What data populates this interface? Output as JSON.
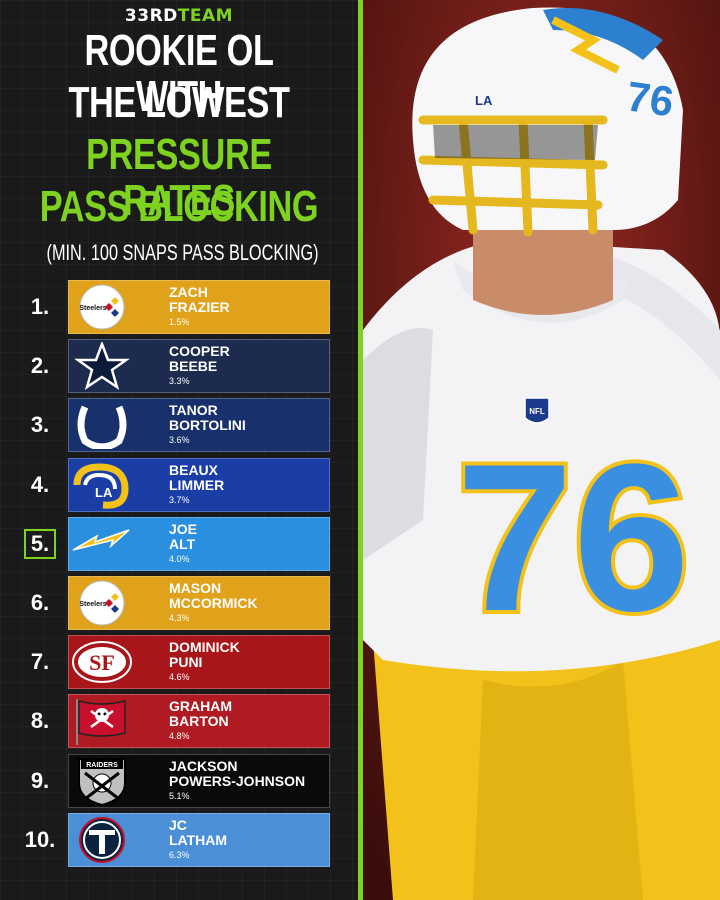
{
  "brand": {
    "prefix": "33RD",
    "suffix": "TEAM"
  },
  "title": {
    "line1": "ROOKIE OL WITH",
    "line2": "THE LOWEST",
    "line3": "PRESSURE RATES",
    "line4": "PASS BLOCKING"
  },
  "subtitle": "(MIN. 100 SNAPS PASS BLOCKING)",
  "colors": {
    "accent": "#7ed321",
    "background": "#1a1a1a"
  },
  "players": [
    {
      "rank": "1.",
      "first": "ZACH",
      "last": "FRAZIER",
      "rate": "1.5%",
      "team_icon": "steelers-logo-icon",
      "logo_text": "Steelers",
      "card_color": "#e0a21a"
    },
    {
      "rank": "2.",
      "first": "COOPER",
      "last": "BEEBE",
      "rate": "3.3%",
      "team_icon": "cowboys-star-icon",
      "card_color": "#1c2b4e"
    },
    {
      "rank": "3.",
      "first": "TANOR",
      "last": "BORTOLINI",
      "rate": "3.6%",
      "team_icon": "colts-horseshoe-icon",
      "card_color": "#18306b"
    },
    {
      "rank": "4.",
      "first": "BEAUX",
      "last": "LIMMER",
      "rate": "3.7%",
      "team_icon": "rams-horn-icon",
      "logo_text": "LA",
      "card_color": "#1a3ea6"
    },
    {
      "rank": "5.",
      "first": "JOE",
      "last": "ALT",
      "rate": "4.0%",
      "team_icon": "chargers-bolt-icon",
      "card_color": "#2b8fe0"
    },
    {
      "rank": "6.",
      "first": "MASON",
      "last": "MCCORMICK",
      "rate": "4.3%",
      "team_icon": "steelers-logo-icon",
      "logo_text": "Steelers",
      "card_color": "#e0a21a"
    },
    {
      "rank": "7.",
      "first": "DOMINICK",
      "last": "PUNI",
      "rate": "4.6%",
      "team_icon": "49ers-logo-icon",
      "logo_text": "SF",
      "card_color": "#a8161a"
    },
    {
      "rank": "8.",
      "first": "GRAHAM",
      "last": "BARTON",
      "rate": "4.8%",
      "team_icon": "buccaneers-flag-icon",
      "card_color": "#b01a22"
    },
    {
      "rank": "9.",
      "first": "JACKSON",
      "last": "POWERS-JOHNSON",
      "rate": "5.1%",
      "team_icon": "raiders-shield-icon",
      "logo_text": "RAIDERS",
      "card_color": "#0a0a0a"
    },
    {
      "rank": "10.",
      "first": "JC",
      "last": "LATHAM",
      "rate": "6.3%",
      "team_icon": "titans-logo-icon",
      "card_color": "#4b8fd6"
    }
  ],
  "photo": {
    "jersey_number": "76",
    "helmet_number": "76",
    "helmet_text": "LA",
    "shield_text": "NFL"
  }
}
